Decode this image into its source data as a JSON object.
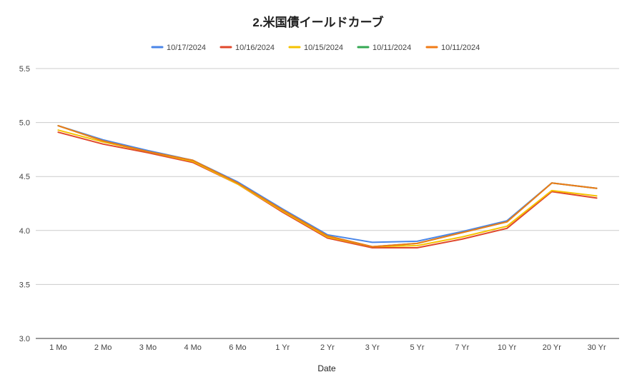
{
  "chart_data": {
    "type": "line",
    "title": "2.米国債イールドカーブ",
    "xlabel": "Date",
    "ylabel": "",
    "categories": [
      "1 Mo",
      "2 Mo",
      "3 Mo",
      "4 Mo",
      "6 Mo",
      "1 Yr",
      "2 Yr",
      "3 Yr",
      "5 Yr",
      "7 Yr",
      "10 Yr",
      "20 Yr",
      "30 Yr"
    ],
    "ylim": [
      3.0,
      5.5
    ],
    "yticks": [
      "3.0",
      "3.5",
      "4.0",
      "4.5",
      "5.0",
      "5.5"
    ],
    "grid": true,
    "legend_position": "top",
    "series": [
      {
        "name": "10/17/2024",
        "color": "#4a86e8",
        "values": [
          4.97,
          4.84,
          4.74,
          4.65,
          4.45,
          4.2,
          3.96,
          3.89,
          3.9,
          3.99,
          4.09,
          4.44,
          4.39
        ]
      },
      {
        "name": "10/16/2024",
        "color": "#e0482b",
        "values": [
          4.91,
          4.8,
          4.72,
          4.63,
          4.43,
          4.17,
          3.93,
          3.84,
          3.84,
          3.92,
          4.02,
          4.36,
          4.3
        ]
      },
      {
        "name": "10/15/2024",
        "color": "#f5c200",
        "values": [
          4.93,
          4.82,
          4.73,
          4.64,
          4.43,
          4.18,
          3.94,
          3.85,
          3.86,
          3.94,
          4.04,
          4.37,
          4.32
        ]
      },
      {
        "name": "10/11/2024",
        "color": "#34a853",
        "values": [
          4.97,
          4.83,
          4.73,
          4.65,
          4.44,
          4.19,
          3.95,
          3.85,
          3.88,
          3.98,
          4.08,
          4.44,
          4.39
        ]
      },
      {
        "name": "10/11/2024",
        "color": "#f07b16",
        "values": [
          4.97,
          4.83,
          4.73,
          4.65,
          4.44,
          4.19,
          3.95,
          3.85,
          3.88,
          3.98,
          4.08,
          4.44,
          4.39
        ]
      }
    ]
  }
}
